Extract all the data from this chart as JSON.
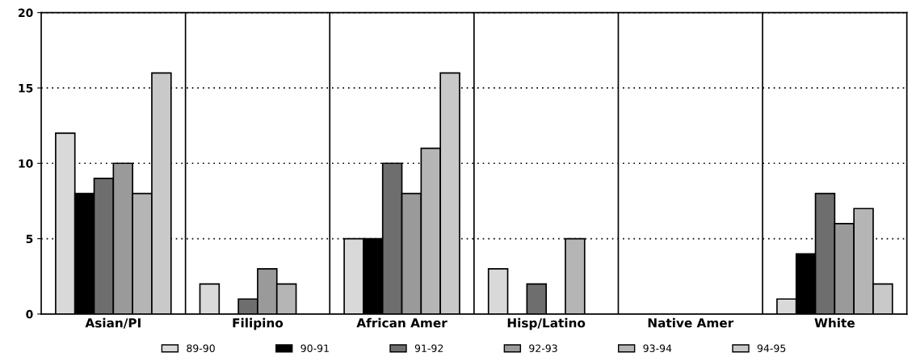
{
  "chart_data": {
    "type": "bar",
    "categories": [
      "Asian/PI",
      "Filipino",
      "African Amer",
      "Hisp/Latino",
      "Native Amer",
      "White"
    ],
    "series": [
      {
        "name": "89-90",
        "color": "#d9d9d9",
        "values": [
          12,
          2,
          5,
          3,
          0,
          1
        ]
      },
      {
        "name": "90-91",
        "color": "#000000",
        "values": [
          8,
          0,
          5,
          0,
          0,
          4
        ]
      },
      {
        "name": "91-92",
        "color": "#6e6e6e",
        "values": [
          9,
          1,
          10,
          2,
          0,
          8
        ]
      },
      {
        "name": "92-93",
        "color": "#9a9a9a",
        "values": [
          10,
          3,
          8,
          0,
          0,
          6
        ]
      },
      {
        "name": "93-94",
        "color": "#b5b5b5",
        "values": [
          8,
          2,
          11,
          5,
          0,
          7
        ]
      },
      {
        "name": "94-95",
        "color": "#c9c9c9",
        "values": [
          16,
          0,
          16,
          0,
          0,
          2
        ]
      }
    ],
    "ylim": [
      0,
      20
    ],
    "yticks": [
      0,
      5,
      10,
      15,
      20
    ],
    "grid": true,
    "legend": "bottom"
  }
}
